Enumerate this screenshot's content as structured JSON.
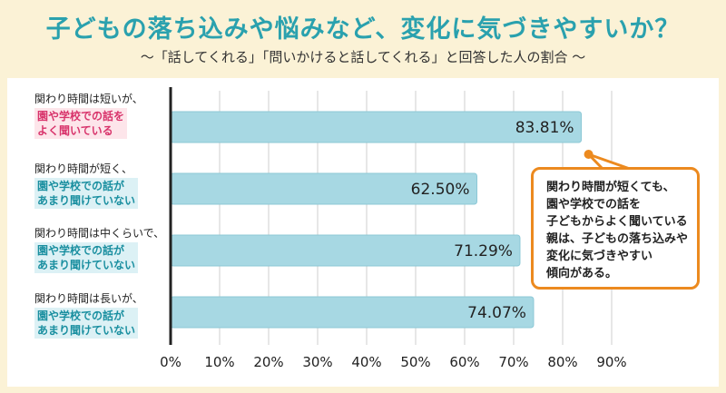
{
  "title": "子どもの落ち込みや悩みなど、変化に気づきやすいか？",
  "subtitle": "〜「話してくれる」「問いかけると話してくれる」と回答した人の割合 〜",
  "callout": "関わり時間が短くても、\n園や学校での話を\n子どもからよく聞いている\n親は、子どもの落ち込みや\n変化に気づきやすい\n傾向がある。",
  "categories": [
    {
      "lead": "関わり時間は短いが、",
      "highlight": "園や学校での話を\nよく聞いている",
      "style": "pink"
    },
    {
      "lead": "関わり時間が短く、",
      "highlight": "園や学校での話が\nあまり聞けていない",
      "style": "blue"
    },
    {
      "lead": "関わり時間は中くらいで、",
      "highlight": "園や学校での話が\nあまり聞けていない",
      "style": "blue"
    },
    {
      "lead": "関わり時間は長いが、",
      "highlight": "園や学校での話が\nあまり聞けていない",
      "style": "blue"
    }
  ],
  "chart_data": {
    "type": "bar",
    "orientation": "horizontal",
    "title": "子どもの落ち込みや悩みなど、変化に気づきやすいか？",
    "categories": [
      "関わり時間は短いが、園や学校での話をよく聞いている",
      "関わり時間が短く、園や学校での話があまり聞けていない",
      "関わり時間は中くらいで、園や学校での話があまり聞けていない",
      "関わり時間は長いが、園や学校での話があまり聞けていない"
    ],
    "values": [
      83.81,
      62.5,
      71.29,
      74.07
    ],
    "value_labels": [
      "83.81%",
      "62.50%",
      "71.29%",
      "74.07%"
    ],
    "xlim": [
      0,
      90
    ],
    "ticks": [
      0,
      10,
      20,
      30,
      40,
      50,
      60,
      70,
      80,
      90
    ],
    "tick_labels": [
      "0%",
      "10%",
      "20%",
      "30%",
      "40%",
      "50%",
      "60%",
      "70%",
      "80%",
      "90%"
    ],
    "grid": true
  },
  "colors": {
    "bar": "#a7d8e3",
    "bar_stroke": "#8cc8d6",
    "title": "#2aa1ae",
    "accent_orange": "#ec8a1f",
    "pink_text": "#d8336b",
    "pink_bg": "#fde5ea",
    "blue_text": "#1a8fa0",
    "blue_bg": "#dcf1f5",
    "grid": "#cfcfcf",
    "axis": "#222222"
  }
}
